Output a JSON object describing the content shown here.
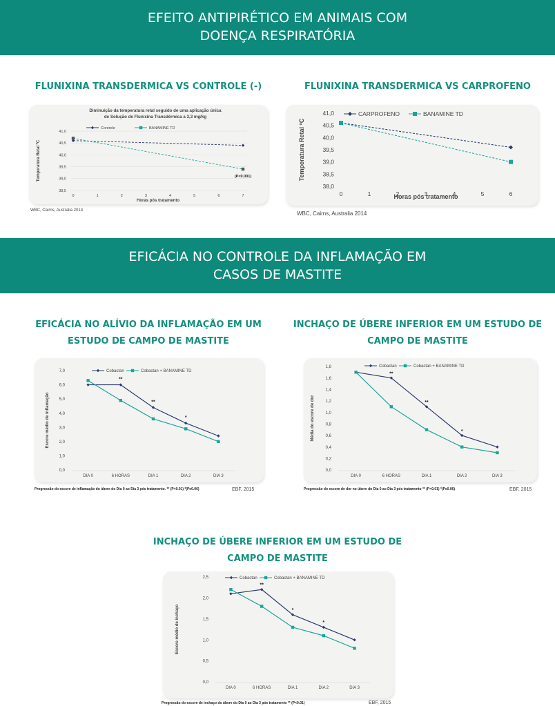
{
  "banners": [
    {
      "lines": [
        "EFEITO ANTIPIRÉTICO EM ANIMAIS COM",
        "DOENÇA RESPIRATÓRIA"
      ]
    },
    {
      "lines": [
        "EFICÁCIA NO CONTROLE DA INFLAMAÇÃO EM",
        "CASOS DE MASTITE"
      ]
    }
  ],
  "sections": [
    {
      "lines": [
        "FLUNIXINA TRANSDERMICA VS CONTROLE (-)"
      ]
    },
    {
      "lines": [
        "FLUNIXINA TRANSDERMICA VS CARPROFENO"
      ]
    },
    {
      "lines": [
        "EFICÁCIA NO ALÍVIO DA INFLAMAÇÃO EM UM",
        "ESTUDO DE CAMPO DE MASTITE"
      ]
    },
    {
      "lines": [
        "INCHAÇO DE ÚBERE INFERIOR EM UM ESTUDO DE",
        "CAMPO DE MASTITE"
      ]
    },
    {
      "lines": [
        "INCHAÇO DE ÚBERE INFERIOR EM UM ESTUDO DE",
        "CAMPO DE MASTITE"
      ]
    }
  ],
  "colors": {
    "banner": "#0e8a7c",
    "title": "#14907f",
    "navy": "#2b3a6e",
    "teal": "#1aa59a",
    "gray_marker": "#555555"
  },
  "chart_data": [
    {
      "type": "line",
      "title": "Diminuição da temperatura retal seguido de uma aplicação única de Solução de Flunixina Transdérmica a 3,3 mg/kg",
      "xlabel": "Horas pós tratamento",
      "ylabel": "Temperatura Retal ºC",
      "x_ticks": [
        "0",
        "1",
        "2",
        "3",
        "4",
        "5",
        "6",
        "7"
      ],
      "ylim": [
        38.5,
        41.0
      ],
      "y_ticks": [
        "38,5",
        "39,0",
        "39,5",
        "40,0",
        "40,5",
        "41,0"
      ],
      "series": [
        {
          "name": "Controle",
          "x": [
            0,
            7
          ],
          "values": [
            40.6,
            40.4
          ],
          "color": "#2b3a6e",
          "marker": "diamond"
        },
        {
          "name": "BANAMINE TD",
          "x": [
            0,
            7
          ],
          "values": [
            40.7,
            39.4
          ],
          "color": "#1aa59a",
          "marker": "square"
        }
      ],
      "annotations": [
        {
          "text": "(P<0.001)",
          "x": 7,
          "y": 39.05
        }
      ],
      "source": "WBC, Cairns, Australia 2014",
      "grid": false,
      "legend": "top"
    },
    {
      "type": "line",
      "title": "",
      "xlabel": "Horas pós tratamento",
      "ylabel": "Temperatura Retal ºC",
      "x_ticks": [
        "0",
        "1",
        "2",
        "3",
        "4",
        "5",
        "6"
      ],
      "ylim": [
        38.0,
        41.0
      ],
      "y_ticks": [
        "38,0",
        "38,5",
        "39,0",
        "39,5",
        "40,0",
        "40,5",
        "41,0"
      ],
      "series": [
        {
          "name": "CARPROFENO",
          "x": [
            0,
            6
          ],
          "values": [
            40.6,
            39.6
          ],
          "color": "#2b3a6e",
          "marker": "diamond"
        },
        {
          "name": "BANAMINE TD",
          "x": [
            0,
            6
          ],
          "values": [
            40.6,
            39.0
          ],
          "color": "#1aa59a",
          "marker": "square"
        }
      ],
      "source": "WBC, Cairns, Australia 2014",
      "grid": false,
      "legend": "top"
    },
    {
      "type": "line",
      "title": "",
      "xlabel": "",
      "ylabel": "Escore médio de inflamação",
      "categories": [
        "DIA 0",
        "6 HORAS",
        "DIA 1",
        "DIA 2",
        "DIA 3"
      ],
      "ylim": [
        0,
        7
      ],
      "y_ticks": [
        "0,0",
        "1,0",
        "2,0",
        "3,0",
        "4,0",
        "5,0",
        "6,0",
        "7,0"
      ],
      "series": [
        {
          "name": "Cobactan",
          "values": [
            6.0,
            6.0,
            4.4,
            3.3,
            2.4
          ],
          "color": "#2b3a6e",
          "marker": "diamond"
        },
        {
          "name": "Cobactan + BANAMINE TD",
          "values": [
            6.3,
            4.9,
            3.6,
            2.9,
            2.0
          ],
          "color": "#1aa59a",
          "marker": "square"
        }
      ],
      "annotations": [
        {
          "text": "**",
          "index": 1,
          "y": 6.3
        },
        {
          "text": "**",
          "index": 2,
          "y": 4.7
        },
        {
          "text": "*",
          "index": 3,
          "y": 3.6
        }
      ],
      "note": "Progressão do escore de inflamação do úbere do Dia 0 ao Dia 3 pós tratamento. ** (P<0.01) *(P≤0.06)",
      "source": "EBF, 2015",
      "grid": false,
      "legend": "top"
    },
    {
      "type": "line",
      "title": "",
      "xlabel": "",
      "ylabel": "Média do escore de dor",
      "categories": [
        "DIA 0",
        "6 HORAS",
        "DIA 1",
        "DIA 2",
        "DIA 3"
      ],
      "ylim": [
        0,
        1.8
      ],
      "y_ticks": [
        "0,0",
        "0,2",
        "0,4",
        "0,6",
        "0,8",
        "1,0",
        "1,2",
        "1,4",
        "1,6",
        "1,8"
      ],
      "series": [
        {
          "name": "Cobactan",
          "values": [
            1.7,
            1.6,
            1.1,
            0.6,
            0.4
          ],
          "color": "#2b3a6e",
          "marker": "diamond"
        },
        {
          "name": "Cobactan + BANAMINE TD",
          "values": [
            1.7,
            1.1,
            0.7,
            0.4,
            0.3
          ],
          "color": "#1aa59a",
          "marker": "square"
        }
      ],
      "annotations": [
        {
          "text": "**",
          "index": 1,
          "y": 1.65
        },
        {
          "text": "**",
          "index": 2,
          "y": 1.15
        },
        {
          "text": "*",
          "index": 3,
          "y": 0.65
        }
      ],
      "note": "Progressão do escore de dor no úbere do Dia 0 ao Dia 3 pós tratamento ** (P<0.01) *(P≤0.06)",
      "source": "EBF, 2015",
      "grid": false,
      "legend": "top"
    },
    {
      "type": "line",
      "title": "",
      "xlabel": "",
      "ylabel": "Escore médio de inchaço",
      "categories": [
        "DIA 0",
        "6 HORAS",
        "DIA 1",
        "DIA 2",
        "DIA 3"
      ],
      "ylim": [
        0,
        2.5
      ],
      "y_ticks": [
        "0,0",
        "0,5",
        "1,0",
        "1,5",
        "2,0",
        "2,5"
      ],
      "series": [
        {
          "name": "Cobactan",
          "values": [
            2.1,
            2.2,
            1.6,
            1.3,
            1.0
          ],
          "color": "#2b3a6e",
          "marker": "diamond"
        },
        {
          "name": "Cobactan + BANAMINE TD",
          "values": [
            2.2,
            1.8,
            1.3,
            1.1,
            0.8
          ],
          "color": "#1aa59a",
          "marker": "square"
        }
      ],
      "annotations": [
        {
          "text": "**",
          "index": 1,
          "y": 2.28
        },
        {
          "text": "*",
          "index": 2,
          "y": 1.68
        },
        {
          "text": "*",
          "index": 3,
          "y": 1.38
        }
      ],
      "note": "Progressão do escore de inchaço do úbere do Dia 0 ao Dia 3 pós tratamento ** (P<0.01)",
      "source": "EBF, 2015",
      "grid": false,
      "legend": "top"
    }
  ]
}
